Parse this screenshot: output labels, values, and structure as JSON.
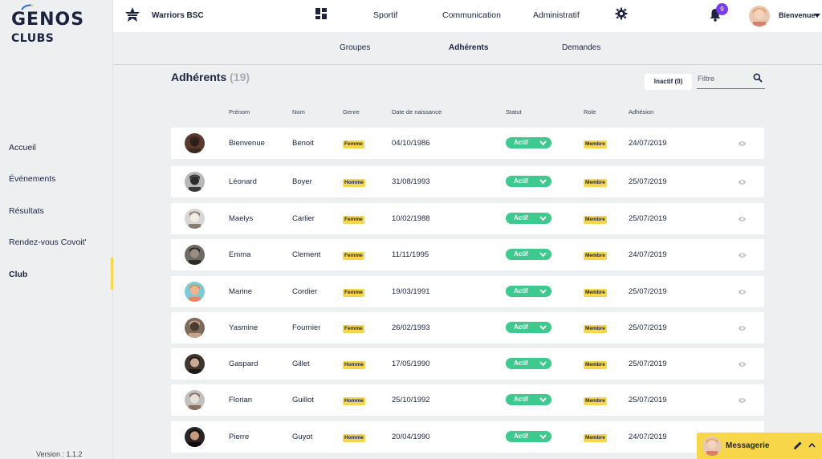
{
  "sidebar": {
    "logo_big": "GENOS",
    "logo_small": "CLUBS",
    "items": [
      {
        "label": "Accueil",
        "active": false
      },
      {
        "label": "Événements",
        "active": false
      },
      {
        "label": "Résultats",
        "active": false
      },
      {
        "label": "Rendez-vous Covoit'",
        "active": false
      },
      {
        "label": "Club",
        "active": true
      }
    ],
    "version": "Version : 1.1.2"
  },
  "header": {
    "club_name": "Warriors BSC",
    "links": [
      "Sportif",
      "Communication",
      "Administratif"
    ],
    "notifications": "9",
    "user_name": "Bienvenue"
  },
  "subnav": {
    "tabs": [
      {
        "label": "Groupes",
        "active": false
      },
      {
        "label": "Adhérents",
        "active": true
      },
      {
        "label": "Demandes",
        "active": false
      }
    ]
  },
  "main": {
    "title": "Adhérents",
    "count": "(19)",
    "inactive_label": "Inactif (0)",
    "filter_placeholder": "Filtre",
    "columns": [
      "Prénom",
      "Nom",
      "Genre",
      "Date de naissance",
      "Statut",
      "Role",
      "Adhésion"
    ],
    "rows": [
      {
        "prenom": "Bienvenue",
        "nom": "Benoit",
        "genre": "Femme",
        "naissance": "04/10/1986",
        "statut": "Actif",
        "role": "Membre",
        "adhesion": "24/07/2019"
      },
      {
        "prenom": "Léonard",
        "nom": "Boyer",
        "genre": "Homme",
        "naissance": "31/08/1993",
        "statut": "Actif",
        "role": "Membre",
        "adhesion": "25/07/2019"
      },
      {
        "prenom": "Maelys",
        "nom": "Carlier",
        "genre": "Femme",
        "naissance": "10/02/1988",
        "statut": "Actif",
        "role": "Membre",
        "adhesion": "25/07/2019"
      },
      {
        "prenom": "Emma",
        "nom": "Clement",
        "genre": "Femme",
        "naissance": "11/11/1995",
        "statut": "Actif",
        "role": "Membre",
        "adhesion": "24/07/2019"
      },
      {
        "prenom": "Marine",
        "nom": "Cordier",
        "genre": "Femme",
        "naissance": "19/03/1991",
        "statut": "Actif",
        "role": "Membre",
        "adhesion": "25/07/2019"
      },
      {
        "prenom": "Yasmine",
        "nom": "Fournier",
        "genre": "Femme",
        "naissance": "26/02/1993",
        "statut": "Actif",
        "role": "Membre",
        "adhesion": "25/07/2019"
      },
      {
        "prenom": "Gaspard",
        "nom": "Gillet",
        "genre": "Homme",
        "naissance": "17/05/1990",
        "statut": "Actif",
        "role": "Membre",
        "adhesion": "25/07/2019"
      },
      {
        "prenom": "Florian",
        "nom": "Guillot",
        "genre": "Homme",
        "naissance": "25/10/1992",
        "statut": "Actif",
        "role": "Membre",
        "adhesion": "25/07/2019"
      },
      {
        "prenom": "Pierre",
        "nom": "Guyot",
        "genre": "Homme",
        "naissance": "20/04/1990",
        "statut": "Actif",
        "role": "Membre",
        "adhesion": "24/07/2019"
      }
    ]
  },
  "messagerie": {
    "label": "Messagerie"
  },
  "colors": {
    "accent_yellow": "#f7d64a",
    "status_green": "#3ec98e",
    "badge_purple": "#7c3aed",
    "navy": "#1c2340"
  }
}
